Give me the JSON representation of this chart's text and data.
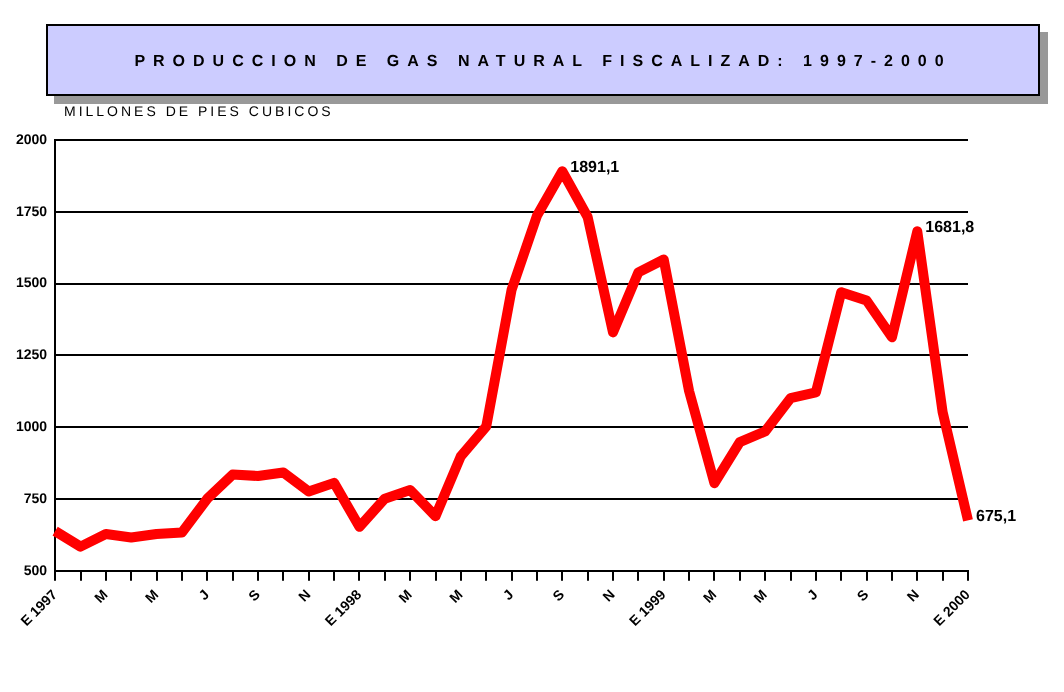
{
  "chart_data": {
    "type": "line",
    "title": "PRODUCCION DE GAS NATURAL FISCALIZAD: 1997-2000",
    "ylabel": "MILLONES DE PIES CUBICOS",
    "categories": [
      "E 1997",
      null,
      "M",
      null,
      "M",
      null,
      "J",
      null,
      "S",
      null,
      "N",
      null,
      "E 1998",
      null,
      "M",
      null,
      "M",
      null,
      "J",
      null,
      "S",
      null,
      "N",
      null,
      "E 1999",
      null,
      "M",
      null,
      "M",
      null,
      "J",
      null,
      "S",
      null,
      "N",
      null,
      "E 2000"
    ],
    "values": [
      638,
      584,
      628,
      616,
      628,
      633,
      751,
      835,
      830,
      842,
      776,
      806,
      653,
      751,
      781,
      690,
      899,
      1002,
      1478,
      1736,
      1891.1,
      1732,
      1330,
      1539,
      1584,
      1126,
      805,
      948,
      985,
      1101,
      1121,
      1470,
      1441,
      1313,
      1681.8,
      1052,
      675.1
    ],
    "value_labels": [
      null,
      null,
      null,
      null,
      null,
      null,
      null,
      null,
      null,
      null,
      null,
      null,
      null,
      null,
      null,
      null,
      null,
      null,
      null,
      null,
      "1891,1",
      null,
      null,
      null,
      null,
      null,
      null,
      null,
      null,
      null,
      null,
      null,
      null,
      null,
      "1681,8",
      null,
      "675,1"
    ],
    "color": "#ff0000",
    "ylim": [
      500,
      2000
    ],
    "yticks": [
      500,
      750,
      1000,
      1250,
      1500,
      1750,
      2000
    ],
    "grid": "y",
    "marker": "none"
  }
}
